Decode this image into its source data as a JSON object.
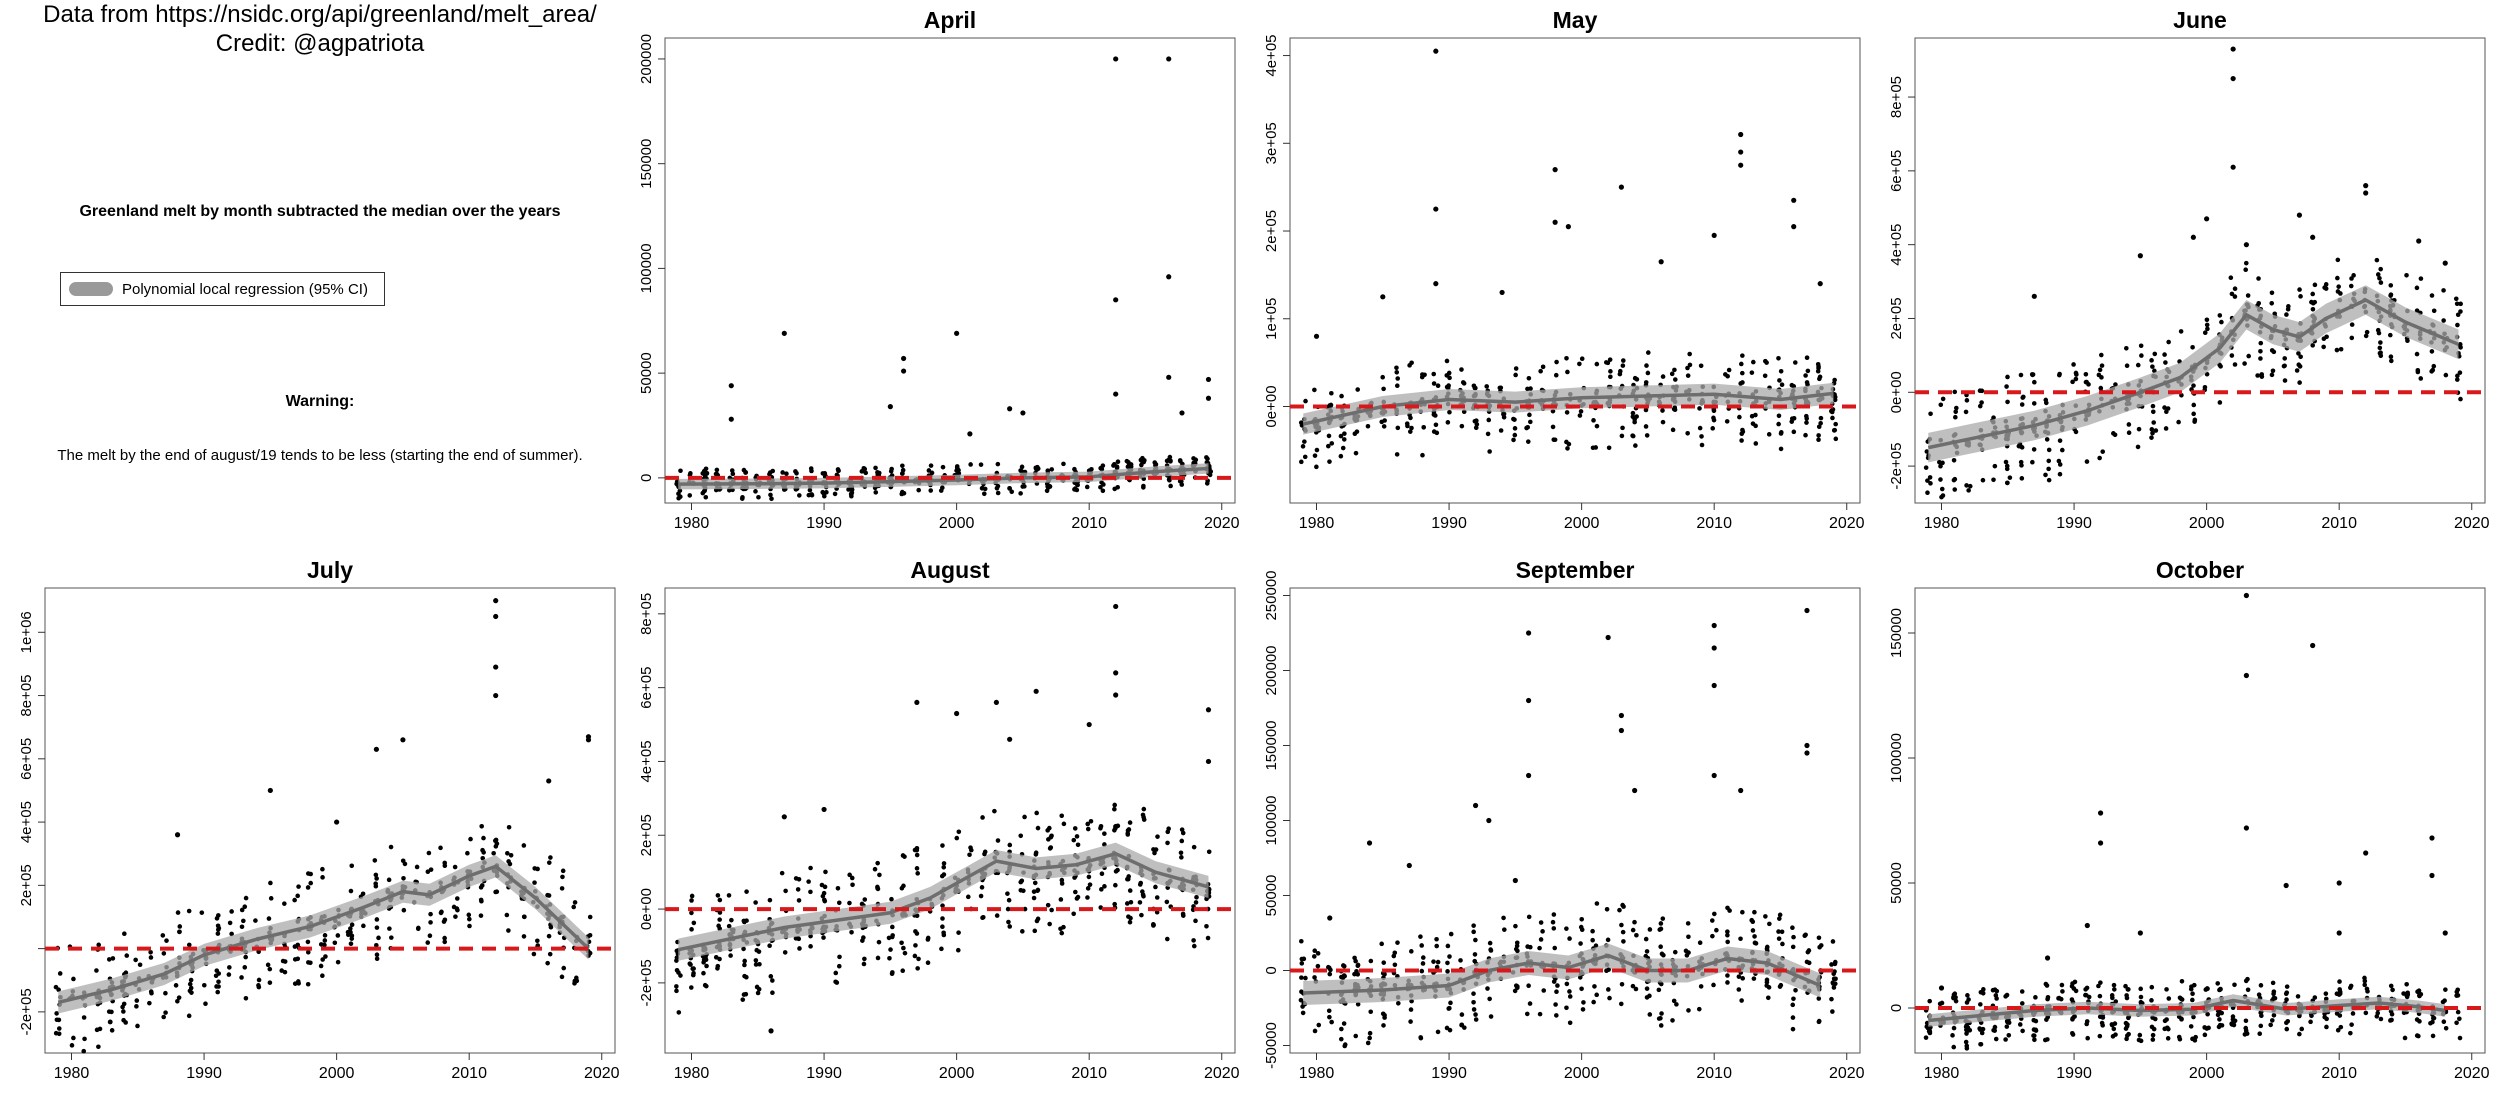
{
  "info": {
    "source_line": "Data from https://nsidc.org/api/greenland/melt_area/",
    "credit_line": "Credit: @agpatriota",
    "subtitle": "Greenland melt by month subtracted the median over the years",
    "legend_label": "Polynomial local regression (95% CI)",
    "warning_title": "Warning:",
    "warning_text": "The melt by the end of august/19 tends to be less (starting the end of summer)."
  },
  "colors": {
    "points": "#000000",
    "smooth": "#6e6e6e",
    "ci_band": "#a9a9a9",
    "median_line": "#d7191c"
  },
  "chart_data": [
    {
      "type": "scatter",
      "title": "April",
      "xlabel": "",
      "ylabel": "",
      "xlim": [
        1978,
        2021
      ],
      "ylim": [
        -12000,
        210000
      ],
      "grid": false,
      "x_ticks": [
        1980,
        1990,
        2000,
        2010,
        2020
      ],
      "y_ticks": [
        0,
        50000,
        100000,
        150000,
        200000
      ],
      "y_tick_labels": [
        "0",
        "50000",
        "100000",
        "150000",
        "200000"
      ],
      "spread": [
        -8000,
        8000
      ],
      "outliers": [
        [
          1983,
          44000
        ],
        [
          1983,
          28000
        ],
        [
          1987,
          69000
        ],
        [
          1995,
          34000
        ],
        [
          1996,
          57000
        ],
        [
          1996,
          51000
        ],
        [
          2000,
          69000
        ],
        [
          2001,
          21000
        ],
        [
          2004,
          33000
        ],
        [
          2005,
          31000
        ],
        [
          2012,
          200000
        ],
        [
          2012,
          85000
        ],
        [
          2012,
          40000
        ],
        [
          2016,
          200000
        ],
        [
          2016,
          96000
        ],
        [
          2016,
          48000
        ],
        [
          2017,
          31000
        ],
        [
          2019,
          47000
        ],
        [
          2019,
          38000
        ]
      ],
      "series": [
        {
          "x": [
            1979,
            1985,
            1990,
            1995,
            2000,
            2005,
            2010,
            2015,
            2019
          ],
          "y": [
            -3000,
            -2800,
            -2500,
            -1800,
            -1000,
            0,
            500,
            3000,
            4500
          ],
          "ci_half_width": 2500
        }
      ]
    },
    {
      "type": "scatter",
      "title": "May",
      "xlabel": "",
      "ylabel": "",
      "xlim": [
        1978,
        2021
      ],
      "ylim": [
        -110000,
        420000
      ],
      "grid": false,
      "x_ticks": [
        1980,
        1990,
        2000,
        2010,
        2020
      ],
      "y_ticks": [
        0,
        100000,
        200000,
        300000,
        400000
      ],
      "y_tick_labels": [
        "0e+00",
        "1e+05",
        "2e+05",
        "3e+05",
        "4e+05"
      ],
      "spread": [
        -65000,
        55000
      ],
      "outliers": [
        [
          1980,
          80000
        ],
        [
          1985,
          125000
        ],
        [
          1989,
          405000
        ],
        [
          1989,
          225000
        ],
        [
          1989,
          140000
        ],
        [
          1994,
          130000
        ],
        [
          1998,
          270000
        ],
        [
          1998,
          210000
        ],
        [
          1999,
          205000
        ],
        [
          2003,
          250000
        ],
        [
          2006,
          165000
        ],
        [
          2010,
          195000
        ],
        [
          2012,
          310000
        ],
        [
          2012,
          290000
        ],
        [
          2012,
          275000
        ],
        [
          2016,
          235000
        ],
        [
          2016,
          205000
        ],
        [
          2018,
          140000
        ]
      ],
      "series": [
        {
          "x": [
            1979,
            1985,
            1990,
            1995,
            2000,
            2005,
            2010,
            2015,
            2019
          ],
          "y": [
            -20000,
            0,
            8000,
            5000,
            10000,
            12000,
            14000,
            8000,
            15000
          ],
          "ci_half_width": 12000
        }
      ]
    },
    {
      "type": "scatter",
      "title": "June",
      "xlabel": "",
      "ylabel": "",
      "xlim": [
        1978,
        2021
      ],
      "ylim": [
        -300000,
        960000
      ],
      "grid": false,
      "x_ticks": [
        1980,
        1990,
        2000,
        2010,
        2020
      ],
      "y_ticks": [
        -200000,
        0,
        200000,
        400000,
        600000,
        800000
      ],
      "y_tick_labels": [
        "-2e+05",
        "0e+00",
        "2e+05",
        "4e+05",
        "6e+05",
        "8e+05"
      ],
      "spread": [
        -170000,
        160000
      ],
      "outliers": [
        [
          1987,
          260000
        ],
        [
          1995,
          370000
        ],
        [
          1999,
          420000
        ],
        [
          2000,
          470000
        ],
        [
          2002,
          930000
        ],
        [
          2002,
          850000
        ],
        [
          2002,
          610000
        ],
        [
          2003,
          400000
        ],
        [
          2007,
          480000
        ],
        [
          2008,
          420000
        ],
        [
          2012,
          560000
        ],
        [
          2012,
          540000
        ],
        [
          2016,
          410000
        ],
        [
          2018,
          350000
        ]
      ],
      "series": [
        {
          "x": [
            1979,
            1983,
            1987,
            1991,
            1995,
            1998,
            2001,
            2003,
            2005,
            2007,
            2009,
            2012,
            2015,
            2019
          ],
          "y": [
            -150000,
            -120000,
            -90000,
            -50000,
            0,
            40000,
            120000,
            210000,
            170000,
            150000,
            200000,
            250000,
            190000,
            130000
          ],
          "ci_half_width": 40000
        }
      ]
    },
    {
      "type": "scatter",
      "title": "July",
      "xlabel": "",
      "ylabel": "",
      "xlim": [
        1978,
        2021
      ],
      "ylim": [
        -330000,
        1140000
      ],
      "grid": false,
      "x_ticks": [
        1980,
        1990,
        2000,
        2010,
        2020
      ],
      "y_ticks": [
        -200000,
        0,
        200000,
        400000,
        600000,
        800000,
        1000000
      ],
      "y_tick_labels": [
        "-2e+05",
        "",
        "2e+05",
        "4e+05",
        "6e+05",
        "8e+05",
        "1e+06"
      ],
      "spread": [
        -200000,
        190000
      ],
      "outliers": [
        [
          1988,
          360000
        ],
        [
          1995,
          500000
        ],
        [
          2000,
          400000
        ],
        [
          2003,
          630000
        ],
        [
          2005,
          660000
        ],
        [
          2012,
          1100000
        ],
        [
          2012,
          1050000
        ],
        [
          2012,
          890000
        ],
        [
          2012,
          800000
        ],
        [
          2016,
          530000
        ],
        [
          2019,
          670000
        ],
        [
          2019,
          660000
        ]
      ],
      "series": [
        {
          "x": [
            1979,
            1983,
            1987,
            1990,
            1994,
            1998,
            2002,
            2005,
            2007,
            2010,
            2012,
            2015,
            2019
          ],
          "y": [
            -170000,
            -130000,
            -80000,
            -20000,
            30000,
            70000,
            130000,
            180000,
            170000,
            230000,
            260000,
            160000,
            0
          ],
          "ci_half_width": 35000
        }
      ]
    },
    {
      "type": "scatter",
      "title": "August",
      "xlabel": "",
      "ylabel": "",
      "xlim": [
        1978,
        2021
      ],
      "ylim": [
        -390000,
        870000
      ],
      "grid": false,
      "x_ticks": [
        1980,
        1990,
        2000,
        2010,
        2020
      ],
      "y_ticks": [
        -200000,
        0,
        200000,
        400000,
        600000,
        800000
      ],
      "y_tick_labels": [
        "-2e+05",
        "0e+00",
        "2e+05",
        "4e+05",
        "6e+05",
        "8e+05"
      ],
      "spread": [
        -200000,
        170000
      ],
      "outliers": [
        [
          1986,
          -330000
        ],
        [
          1987,
          250000
        ],
        [
          1990,
          270000
        ],
        [
          1997,
          560000
        ],
        [
          2000,
          530000
        ],
        [
          2003,
          560000
        ],
        [
          2004,
          460000
        ],
        [
          2006,
          590000
        ],
        [
          2010,
          500000
        ],
        [
          2012,
          820000
        ],
        [
          2012,
          640000
        ],
        [
          2012,
          580000
        ],
        [
          2019,
          540000
        ],
        [
          2019,
          400000
        ]
      ],
      "series": [
        {
          "x": [
            1979,
            1983,
            1987,
            1991,
            1995,
            1998,
            2001,
            2003,
            2006,
            2009,
            2012,
            2015,
            2019
          ],
          "y": [
            -110000,
            -80000,
            -50000,
            -30000,
            -10000,
            30000,
            90000,
            130000,
            110000,
            120000,
            150000,
            100000,
            60000
          ],
          "ci_half_width": 30000
        }
      ]
    },
    {
      "type": "scatter",
      "title": "September",
      "xlabel": "",
      "ylabel": "",
      "xlim": [
        1978,
        2021
      ],
      "ylim": [
        -55000,
        255000
      ],
      "grid": false,
      "x_ticks": [
        1980,
        1990,
        2000,
        2010,
        2020
      ],
      "y_ticks": [
        -50000,
        0,
        50000,
        100000,
        150000,
        200000,
        250000
      ],
      "y_tick_labels": [
        "-50000",
        "0",
        "50000",
        "100000",
        "150000",
        "200000",
        "250000"
      ],
      "spread": [
        -40000,
        40000
      ],
      "outliers": [
        [
          1981,
          35000
        ],
        [
          1984,
          85000
        ],
        [
          1987,
          70000
        ],
        [
          1992,
          110000
        ],
        [
          1993,
          100000
        ],
        [
          1995,
          60000
        ],
        [
          1996,
          225000
        ],
        [
          1996,
          180000
        ],
        [
          1996,
          130000
        ],
        [
          2002,
          222000
        ],
        [
          2003,
          170000
        ],
        [
          2003,
          160000
        ],
        [
          2004,
          120000
        ],
        [
          2010,
          230000
        ],
        [
          2010,
          215000
        ],
        [
          2010,
          190000
        ],
        [
          2010,
          130000
        ],
        [
          2012,
          120000
        ],
        [
          2017,
          240000
        ],
        [
          2017,
          150000
        ],
        [
          2017,
          145000
        ]
      ],
      "series": [
        {
          "x": [
            1979,
            1985,
            1990,
            1993,
            1996,
            1999,
            2002,
            2005,
            2008,
            2011,
            2014,
            2018
          ],
          "y": [
            -15000,
            -13000,
            -10000,
            0,
            5000,
            2000,
            10000,
            0,
            0,
            8000,
            5000,
            -10000
          ],
          "ci_half_width": 8000
        }
      ]
    },
    {
      "type": "scatter",
      "title": "October",
      "xlabel": "",
      "ylabel": "",
      "xlim": [
        1978,
        2021
      ],
      "ylim": [
        -18000,
        168000
      ],
      "grid": false,
      "x_ticks": [
        1980,
        1990,
        2000,
        2010,
        2020
      ],
      "y_ticks": [
        0,
        50000,
        100000,
        150000
      ],
      "y_tick_labels": [
        "0",
        "50000",
        "100000",
        "150000"
      ],
      "spread": [
        -14000,
        12000
      ],
      "outliers": [
        [
          1980,
          8000
        ],
        [
          1988,
          20000
        ],
        [
          1991,
          33000
        ],
        [
          1992,
          78000
        ],
        [
          1992,
          66000
        ],
        [
          1995,
          30000
        ],
        [
          2003,
          165000
        ],
        [
          2003,
          133000
        ],
        [
          2003,
          72000
        ],
        [
          2006,
          49000
        ],
        [
          2008,
          145000
        ],
        [
          2010,
          50000
        ],
        [
          2010,
          30000
        ],
        [
          2012,
          62000
        ],
        [
          2017,
          68000
        ],
        [
          2017,
          53000
        ],
        [
          2018,
          30000
        ]
      ],
      "series": [
        {
          "x": [
            1979,
            1983,
            1987,
            1991,
            1995,
            1999,
            2002,
            2006,
            2010,
            2013,
            2016,
            2018
          ],
          "y": [
            -5000,
            -3000,
            -1000,
            0,
            -1000,
            -500,
            3000,
            -500,
            1000,
            2000,
            500,
            -1000
          ],
          "ci_half_width": 2500
        }
      ]
    }
  ]
}
